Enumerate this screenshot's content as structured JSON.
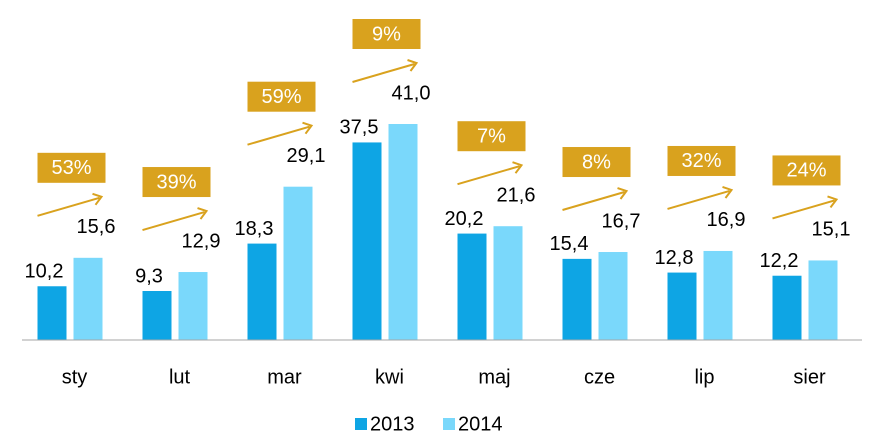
{
  "chart_data": {
    "type": "bar",
    "categories": [
      "sty",
      "lut",
      "mar",
      "kwi",
      "maj",
      "cze",
      "lip",
      "sier"
    ],
    "series": [
      {
        "name": "2013",
        "color": "#0ea5e4",
        "values": [
          10.2,
          9.3,
          18.3,
          37.5,
          20.2,
          15.4,
          12.8,
          12.2
        ],
        "value_labels": [
          "10,2",
          "9,3",
          "18,3",
          "37,5",
          "20,2",
          "15,4",
          "12,8",
          "12,2"
        ]
      },
      {
        "name": "2014",
        "color": "#7ad8fb",
        "values": [
          15.6,
          12.9,
          29.1,
          41.0,
          21.6,
          16.7,
          16.9,
          15.1
        ],
        "value_labels": [
          "15,6",
          "12,9",
          "29,1",
          "41,0",
          "21,6",
          "16,7",
          "16,9",
          "15,1"
        ]
      }
    ],
    "annotations": [
      "53%",
      "39%",
      "59%",
      "9%",
      "7%",
      "8%",
      "32%",
      "24%"
    ],
    "annotation_color": "#d9a21e"
  }
}
